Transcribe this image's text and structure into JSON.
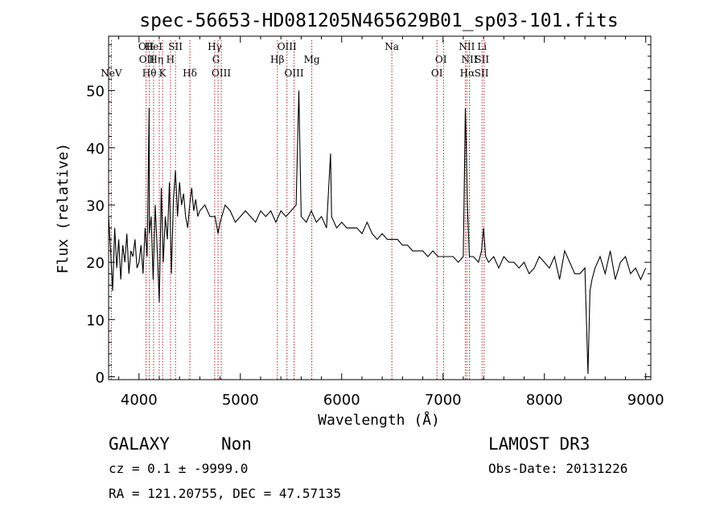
{
  "chart_data": {
    "type": "line",
    "title": "spec-56653-HD081205N465629B01_sp03-101.fits",
    "xlabel": "Wavelength (Å)",
    "ylabel": "Flux (relative)",
    "xlim": [
      3700,
      9050
    ],
    "ylim": [
      -0.5,
      59.5
    ],
    "x_ticks": [
      4000,
      5000,
      6000,
      7000,
      8000,
      9000
    ],
    "y_ticks": [
      0,
      10,
      20,
      30,
      40,
      50
    ],
    "grid": false,
    "series": [
      {
        "x": [
          3700,
          3720,
          3740,
          3760,
          3780,
          3800,
          3820,
          3840,
          3860,
          3880,
          3900,
          3920,
          3940,
          3960,
          3980,
          4000,
          4020,
          4040,
          4060,
          4080,
          4100,
          4102,
          4120,
          4140,
          4160,
          4180,
          4200,
          4220,
          4240,
          4260,
          4280,
          4300,
          4320,
          4340,
          4360,
          4380,
          4400,
          4420,
          4440,
          4460,
          4480,
          4500,
          4520,
          4540,
          4560,
          4580,
          4600,
          4650,
          4700,
          4750,
          4780,
          4800,
          4850,
          4900,
          4950,
          5000,
          5050,
          5100,
          5150,
          5200,
          5250,
          5300,
          5350,
          5400,
          5450,
          5500,
          5550,
          5577,
          5600,
          5650,
          5700,
          5750,
          5800,
          5850,
          5890,
          5900,
          5950,
          6000,
          6050,
          6100,
          6150,
          6200,
          6250,
          6300,
          6350,
          6400,
          6450,
          6500,
          6550,
          6600,
          6650,
          6700,
          6750,
          6800,
          6850,
          6900,
          6950,
          7000,
          7050,
          7100,
          7150,
          7200,
          7220,
          7230,
          7240,
          7260,
          7300,
          7350,
          7380,
          7400,
          7420,
          7450,
          7500,
          7550,
          7600,
          7650,
          7700,
          7750,
          7800,
          7850,
          7900,
          7950,
          8000,
          8050,
          8100,
          8150,
          8200,
          8250,
          8300,
          8350,
          8400,
          8430,
          8450,
          8470,
          8500,
          8550,
          8600,
          8650,
          8700,
          8750,
          8800,
          8850,
          8900,
          8950,
          9000
        ],
        "y": [
          28,
          22,
          15,
          26,
          19,
          24,
          17,
          23,
          20,
          25,
          18,
          22,
          21,
          24,
          19,
          20,
          23,
          18,
          26,
          21,
          47,
          25,
          28,
          17,
          30,
          22,
          13,
          33,
          20,
          28,
          24,
          34,
          18,
          31,
          36,
          28,
          34,
          30,
          32,
          28,
          26,
          30,
          33,
          29,
          31,
          28,
          29,
          30,
          28,
          28,
          25,
          27,
          30,
          29,
          27,
          28,
          29,
          28,
          27,
          29,
          28,
          29,
          27,
          29,
          28,
          29,
          30,
          50,
          28,
          27,
          29,
          27,
          28,
          26,
          39,
          28,
          26,
          27,
          26,
          26,
          26,
          25,
          27,
          25,
          24,
          25,
          24,
          24,
          24,
          23,
          23,
          22,
          22,
          22,
          21,
          22,
          21,
          21,
          21,
          21,
          20,
          21,
          47,
          40,
          30,
          21,
          21,
          20,
          22,
          26,
          21,
          20,
          21,
          19,
          21,
          20,
          20,
          19,
          20,
          18,
          19,
          21,
          20,
          19,
          21,
          17,
          22,
          20,
          18,
          18,
          19,
          0.5,
          15,
          17,
          19,
          21,
          18,
          22,
          17,
          20,
          21,
          18,
          19,
          17,
          19
        ]
      }
    ],
    "emission_lines": [
      {
        "label": "NeV",
        "x": 3727,
        "row": 2
      },
      {
        "label": "OII",
        "x": 4070,
        "row": 0
      },
      {
        "label": "OII",
        "x": 4076,
        "row": 1
      },
      {
        "label": "Hθ",
        "x": 4102,
        "row": 2
      },
      {
        "label": "HeI",
        "x": 4144,
        "row": 0
      },
      {
        "label": "Hη",
        "x": 4170,
        "row": 1
      },
      {
        "label": "K",
        "x": 4233,
        "row": 2
      },
      {
        "label": "SII",
        "x": 4360,
        "row": 0
      },
      {
        "label": "H",
        "x": 4310,
        "row": 1
      },
      {
        "label": "Hδ",
        "x": 4502,
        "row": 2
      },
      {
        "label": "Hγ",
        "x": 4747,
        "row": 0
      },
      {
        "label": "G",
        "x": 4760,
        "row": 1
      },
      {
        "label": "OIII",
        "x": 4812,
        "row": 2
      },
      {
        "label": "OIII",
        "x": 5460,
        "row": 0
      },
      {
        "label": "Hβ",
        "x": 5365,
        "row": 1
      },
      {
        "label": "OIII",
        "x": 5530,
        "row": 2
      },
      {
        "label": "Mg",
        "x": 5705,
        "row": 1
      },
      {
        "label": "Na",
        "x": 6495,
        "row": 0
      },
      {
        "label": "OI",
        "x": 6980,
        "row": 1
      },
      {
        "label": "OI",
        "x": 6940,
        "row": 2
      },
      {
        "label": "NII",
        "x": 7235,
        "row": 0
      },
      {
        "label": "Li",
        "x": 7385,
        "row": 0
      },
      {
        "label": "NII",
        "x": 7260,
        "row": 1
      },
      {
        "label": "SII",
        "x": 7385,
        "row": 1
      },
      {
        "label": "Hα",
        "x": 7240,
        "row": 2
      },
      {
        "label": "SII",
        "x": 7380,
        "row": 2
      }
    ],
    "marker_lines": [
      3727,
      4070,
      4102,
      4144,
      4200,
      4233,
      4310,
      4360,
      4502,
      4747,
      4780,
      4812,
      5365,
      5460,
      5530,
      5705,
      6495,
      6940,
      7005,
      7220,
      7235,
      7260,
      7385,
      7405
    ],
    "line_color": "#000000",
    "marker_color": "#b22222"
  },
  "info": {
    "object_class": "GALAXY",
    "subclass": "Non",
    "survey": "LAMOST DR3",
    "redshift": "cz = 0.1 ± -9999.0",
    "obs_date": "Obs-Date: 20131226",
    "coords": "RA = 121.20755, DEC =  47.57135"
  }
}
